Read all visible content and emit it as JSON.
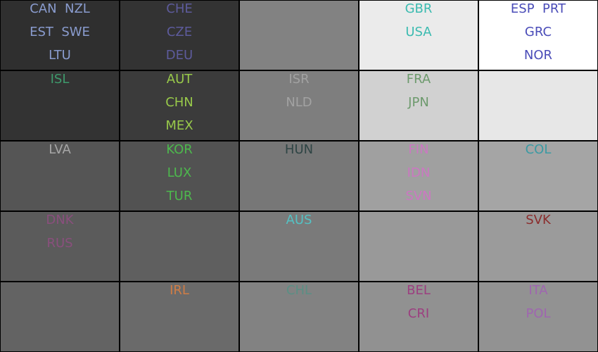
{
  "chart_data": {
    "type": "heatmap",
    "rows": 5,
    "cols": 5,
    "cells": [
      {
        "row": 0,
        "col": 0,
        "bg": "#2f2f2f",
        "color": "#8a9ccf",
        "lines": [
          "CAN  NZL",
          "EST  SWE",
          "LTU"
        ]
      },
      {
        "row": 0,
        "col": 1,
        "bg": "#333333",
        "color": "#5d5b9c",
        "lines": [
          "CHE",
          "CZE",
          "DEU"
        ]
      },
      {
        "row": 0,
        "col": 2,
        "bg": "#828282",
        "color": "#000000",
        "lines": []
      },
      {
        "row": 0,
        "col": 3,
        "bg": "#ebebeb",
        "color": "#3bbbb0",
        "lines": [
          "GBR",
          "USA"
        ]
      },
      {
        "row": 0,
        "col": 4,
        "bg": "#ffffff",
        "color": "#4a4cb8",
        "lines": [
          "ESP  PRT",
          "GRC",
          "NOR"
        ]
      },
      {
        "row": 1,
        "col": 0,
        "bg": "#333333",
        "color": "#3e9a6c",
        "lines": [
          "ISL"
        ]
      },
      {
        "row": 1,
        "col": 1,
        "bg": "#3b3b3b",
        "color": "#98c94a",
        "lines": [
          "AUT",
          "CHN",
          "MEX"
        ]
      },
      {
        "row": 1,
        "col": 2,
        "bg": "#7e7e7e",
        "color": "#a2a2a2",
        "lines": [
          "ISR",
          "NLD"
        ]
      },
      {
        "row": 1,
        "col": 3,
        "bg": "#d1d1d1",
        "color": "#6d9a6d",
        "lines": [
          "FRA",
          "JPN"
        ]
      },
      {
        "row": 1,
        "col": 4,
        "bg": "#e7e7e7",
        "color": "#000000",
        "lines": []
      },
      {
        "row": 2,
        "col": 0,
        "bg": "#555555",
        "color": "#a6a6a6",
        "lines": [
          "LVA"
        ]
      },
      {
        "row": 2,
        "col": 1,
        "bg": "#525252",
        "color": "#4db84d",
        "lines": [
          "KOR",
          "LUX",
          "TUR"
        ]
      },
      {
        "row": 2,
        "col": 2,
        "bg": "#777777",
        "color": "#2f4545",
        "lines": [
          "HUN"
        ]
      },
      {
        "row": 2,
        "col": 3,
        "bg": "#a0a0a0",
        "color": "#cc77c2",
        "lines": [
          "FIN",
          "IDN",
          "SVN"
        ]
      },
      {
        "row": 2,
        "col": 4,
        "bg": "#a5a5a5",
        "color": "#3b9aa3",
        "lines": [
          "COL"
        ]
      },
      {
        "row": 3,
        "col": 0,
        "bg": "#5b5b5b",
        "color": "#8a4f7d",
        "lines": [
          "DNK",
          "RUS"
        ]
      },
      {
        "row": 3,
        "col": 1,
        "bg": "#5f5f5f",
        "color": "#000000",
        "lines": []
      },
      {
        "row": 3,
        "col": 2,
        "bg": "#7a7a7a",
        "color": "#54c2c4",
        "lines": [
          "AUS"
        ]
      },
      {
        "row": 3,
        "col": 3,
        "bg": "#999999",
        "color": "#000000",
        "lines": []
      },
      {
        "row": 3,
        "col": 4,
        "bg": "#9b9b9b",
        "color": "#8b2d2d",
        "lines": [
          "SVK"
        ]
      },
      {
        "row": 4,
        "col": 0,
        "bg": "#636363",
        "color": "#000000",
        "lines": []
      },
      {
        "row": 4,
        "col": 1,
        "bg": "#6a6a6a",
        "color": "#d07d45",
        "lines": [
          "IRL"
        ]
      },
      {
        "row": 4,
        "col": 2,
        "bg": "#828282",
        "color": "#5a8f84",
        "lines": [
          "CHL"
        ]
      },
      {
        "row": 4,
        "col": 3,
        "bg": "#919191",
        "color": "#9c3f80",
        "lines": [
          "BEL",
          "CRI"
        ]
      },
      {
        "row": 4,
        "col": 4,
        "bg": "#929292",
        "color": "#9f65b0",
        "lines": [
          "ITA",
          "POL"
        ]
      }
    ]
  }
}
